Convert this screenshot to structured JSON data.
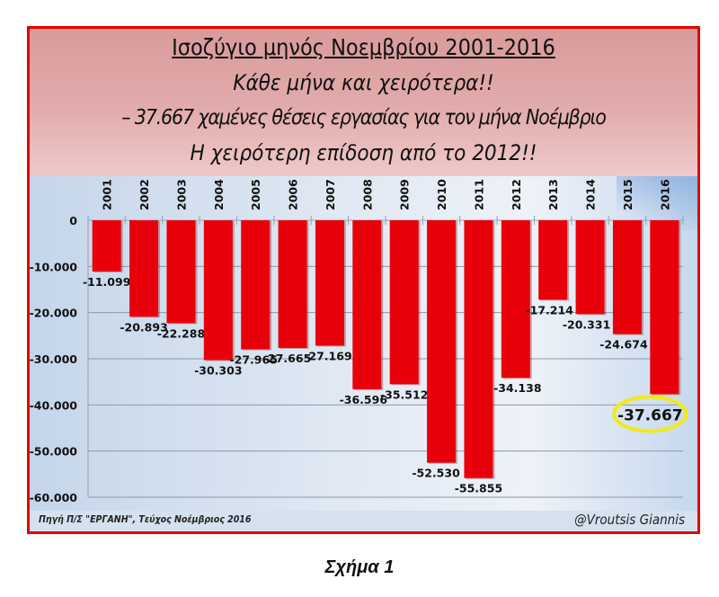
{
  "header": {
    "title": "Ισοζύγιο μηνός Νοεμβρίου 2001-2016",
    "subtitle1": "Κάθε μήνα και χειρότερα!!",
    "subtitle2": "– 37.667 χαμένες θέσεις εργασίας για τον μήνα Νοέμβριο",
    "subtitle3": "Η χειρότερη επίδοση από το 2012!!"
  },
  "footer": {
    "source": "Πηγή  Π/Σ \"ΕΡΓΑΝΗ\",  Τεύχος Νοέμβριος 2016",
    "author": "@Vroutsis Giannis"
  },
  "caption": "Σχήμα 1",
  "colors": {
    "frame": "#e60000",
    "bar": "#e8000b",
    "highlight_ellipse": "#f2ea1a"
  },
  "chart_data": {
    "type": "bar",
    "title": "Ισοζύγιο μηνός Νοεμβρίου 2001-2016",
    "xlabel": "",
    "ylabel": "",
    "categories": [
      "2001",
      "2002",
      "2003",
      "2004",
      "2005",
      "2006",
      "2007",
      "2008",
      "2009",
      "2010",
      "2011",
      "2012",
      "2013",
      "2014",
      "2015",
      "2016"
    ],
    "values": [
      -11099,
      -20893,
      -22288,
      -30303,
      -27965,
      -27665,
      -27169,
      -36596,
      -35512,
      -52530,
      -55855,
      -34138,
      -17214,
      -20331,
      -24674,
      -37667
    ],
    "value_labels": [
      "-11.099",
      "-20.893",
      "-22.288",
      "-30.303",
      "-27.965",
      "-27.665",
      "-27.169",
      "-36.596",
      "-35.512",
      "-52.530",
      "-55.855",
      "-34.138",
      "-17.214",
      "-20.331",
      "-24.674",
      "-37.667"
    ],
    "ylim": [
      -60000,
      0
    ],
    "yticks": [
      0,
      -10000,
      -20000,
      -30000,
      -40000,
      -50000,
      -60000
    ],
    "ytick_labels": [
      "0",
      "-10.000",
      "-20.000",
      "-30.000",
      "-40.000",
      "-50.000",
      "-60.000"
    ],
    "x_axis_position": "top",
    "x_tick_rotation": -90,
    "grid": true,
    "legend": null,
    "annotations": [
      {
        "category": "2016",
        "text": "-37.667",
        "style": "yellow ellipse highlight"
      }
    ]
  }
}
